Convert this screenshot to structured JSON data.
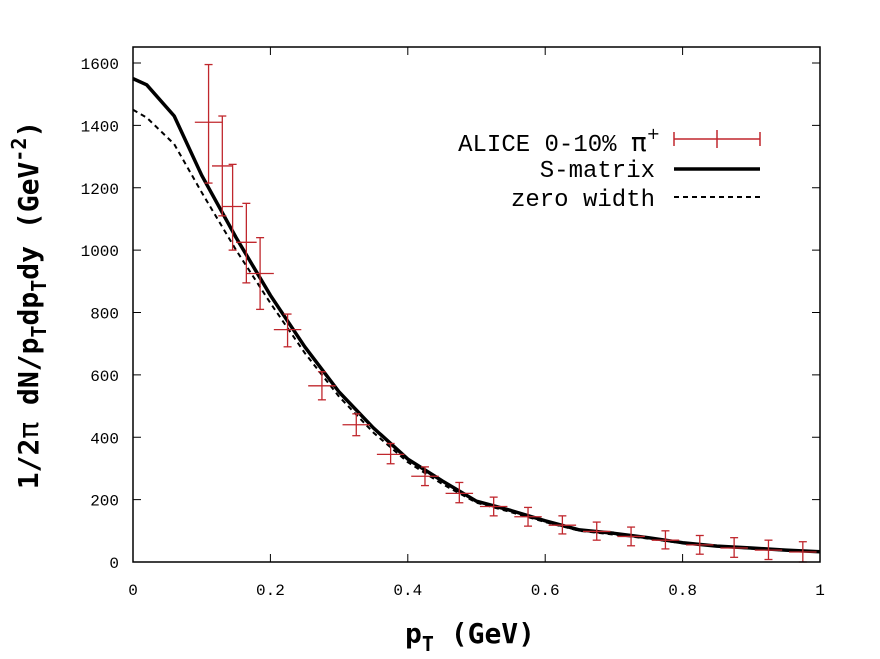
{
  "chart_data": {
    "type": "line",
    "xlabel": {
      "main": "p",
      "sub": "T",
      "rest": " (GeV)"
    },
    "ylabel": {
      "a": "1/2",
      "pi": "π",
      "b": " dN/p",
      "s1": "T",
      "c": "dp",
      "s2": "T",
      "d": "dy  (GeV",
      "sup": "-2",
      "e": ")"
    },
    "xlim": [
      0,
      1
    ],
    "ylim": [
      0,
      1650
    ],
    "x_ticks": [
      0,
      0.2,
      0.4,
      0.6,
      0.8,
      1
    ],
    "x_tick_labels": [
      "0",
      "0.2",
      "0.4",
      "0.6",
      "0.8",
      "1"
    ],
    "y_ticks": [
      0,
      200,
      400,
      600,
      800,
      1000,
      1200,
      1400,
      1600
    ],
    "y_tick_labels": [
      "0",
      "200",
      "400",
      "600",
      "800",
      "1000",
      "1200",
      "1400",
      "1600"
    ],
    "legend_position": "top-right",
    "series": [
      {
        "name": "ALICE 0-10% π⁺",
        "legend": {
          "text": "ALICE 0-10% ",
          "pi": "π",
          "sup": "+"
        },
        "kind": "points",
        "color": "#c0272d",
        "points": [
          {
            "x": 0.11,
            "y": 1410,
            "ylo": 1215,
            "yhi": 1595,
            "xerr": 0.02
          },
          {
            "x": 0.13,
            "y": 1270,
            "ylo": 1110,
            "yhi": 1430,
            "xerr": 0.015
          },
          {
            "x": 0.145,
            "y": 1140,
            "ylo": 1000,
            "yhi": 1275,
            "xerr": 0.015
          },
          {
            "x": 0.165,
            "y": 1025,
            "ylo": 895,
            "yhi": 1150,
            "xerr": 0.015
          },
          {
            "x": 0.185,
            "y": 925,
            "ylo": 810,
            "yhi": 1040,
            "xerr": 0.02
          },
          {
            "x": 0.225,
            "y": 745,
            "ylo": 690,
            "yhi": 795,
            "xerr": 0.02
          },
          {
            "x": 0.275,
            "y": 565,
            "ylo": 520,
            "yhi": 610,
            "xerr": 0.02
          },
          {
            "x": 0.325,
            "y": 440,
            "ylo": 405,
            "yhi": 475,
            "xerr": 0.02
          },
          {
            "x": 0.375,
            "y": 345,
            "ylo": 315,
            "yhi": 380,
            "xerr": 0.02
          },
          {
            "x": 0.425,
            "y": 275,
            "ylo": 245,
            "yhi": 305,
            "xerr": 0.02
          },
          {
            "x": 0.475,
            "y": 220,
            "ylo": 190,
            "yhi": 255,
            "xerr": 0.02
          },
          {
            "x": 0.525,
            "y": 178,
            "ylo": 148,
            "yhi": 208,
            "xerr": 0.02
          },
          {
            "x": 0.575,
            "y": 145,
            "ylo": 115,
            "yhi": 175,
            "xerr": 0.02
          },
          {
            "x": 0.625,
            "y": 118,
            "ylo": 90,
            "yhi": 148,
            "xerr": 0.02
          },
          {
            "x": 0.675,
            "y": 98,
            "ylo": 70,
            "yhi": 128,
            "xerr": 0.02
          },
          {
            "x": 0.725,
            "y": 82,
            "ylo": 52,
            "yhi": 112,
            "xerr": 0.02
          },
          {
            "x": 0.775,
            "y": 70,
            "ylo": 42,
            "yhi": 100,
            "xerr": 0.02
          },
          {
            "x": 0.825,
            "y": 55,
            "ylo": 25,
            "yhi": 85,
            "xerr": 0.02
          },
          {
            "x": 0.875,
            "y": 45,
            "ylo": 15,
            "yhi": 78,
            "xerr": 0.02
          },
          {
            "x": 0.925,
            "y": 38,
            "ylo": 8,
            "yhi": 70,
            "xerr": 0.02
          },
          {
            "x": 0.975,
            "y": 32,
            "ylo": 0,
            "yhi": 65,
            "xerr": 0.02
          }
        ]
      },
      {
        "name": "S-matrix",
        "legend": {
          "text": "S-matrix"
        },
        "kind": "line",
        "color": "#000000",
        "dash": "solid",
        "x": [
          0,
          0.02,
          0.06,
          0.1,
          0.15,
          0.2,
          0.25,
          0.3,
          0.35,
          0.4,
          0.45,
          0.5,
          0.55,
          0.6,
          0.65,
          0.7,
          0.75,
          0.8,
          0.85,
          0.9,
          0.95,
          1.0
        ],
        "y": [
          1550,
          1530,
          1430,
          1240,
          1040,
          855,
          690,
          545,
          430,
          330,
          260,
          195,
          165,
          132,
          103,
          92,
          78,
          62,
          51,
          45,
          38,
          33
        ]
      },
      {
        "name": "zero width",
        "legend": {
          "text": "zero width"
        },
        "kind": "line",
        "color": "#000000",
        "dash": "dashed",
        "x": [
          0,
          0.02,
          0.06,
          0.1,
          0.15,
          0.2,
          0.25,
          0.3,
          0.35,
          0.4,
          0.45,
          0.5,
          0.55,
          0.6,
          0.65,
          0.7,
          0.75,
          0.8,
          0.85,
          0.9,
          0.95,
          1.0
        ],
        "y": [
          1450,
          1425,
          1340,
          1185,
          1000,
          830,
          670,
          530,
          415,
          320,
          250,
          190,
          160,
          128,
          100,
          88,
          75,
          60,
          50,
          43,
          37,
          32
        ]
      }
    ]
  }
}
